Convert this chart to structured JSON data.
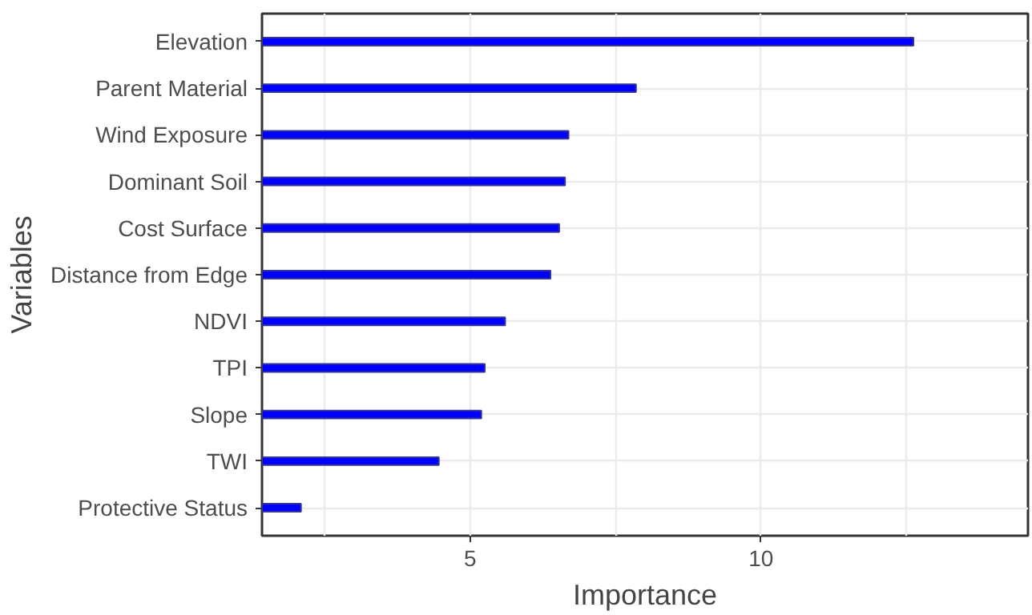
{
  "chart_data": {
    "type": "bar",
    "orientation": "horizontal",
    "xlabel": "Importance",
    "ylabel": "Variables",
    "categories": [
      "Elevation",
      "Parent Material",
      "Wind Exposure",
      "Dominant Soil",
      "Cost Surface",
      "Distance from Edge",
      "NDVI",
      "TPI",
      "Slope",
      "TWI",
      "Protective Status"
    ],
    "values": [
      12.62,
      7.85,
      6.69,
      6.63,
      6.53,
      6.38,
      5.6,
      5.25,
      5.19,
      4.46,
      2.09
    ],
    "color": "#0000ff",
    "xlim": [
      1.42,
      14.59
    ],
    "xticks": [
      {
        "value": 2.5,
        "label": null
      },
      5,
      {
        "value": 7.5,
        "label": null
      },
      10,
      {
        "value": 12.5,
        "label": null
      }
    ],
    "grid": true
  }
}
